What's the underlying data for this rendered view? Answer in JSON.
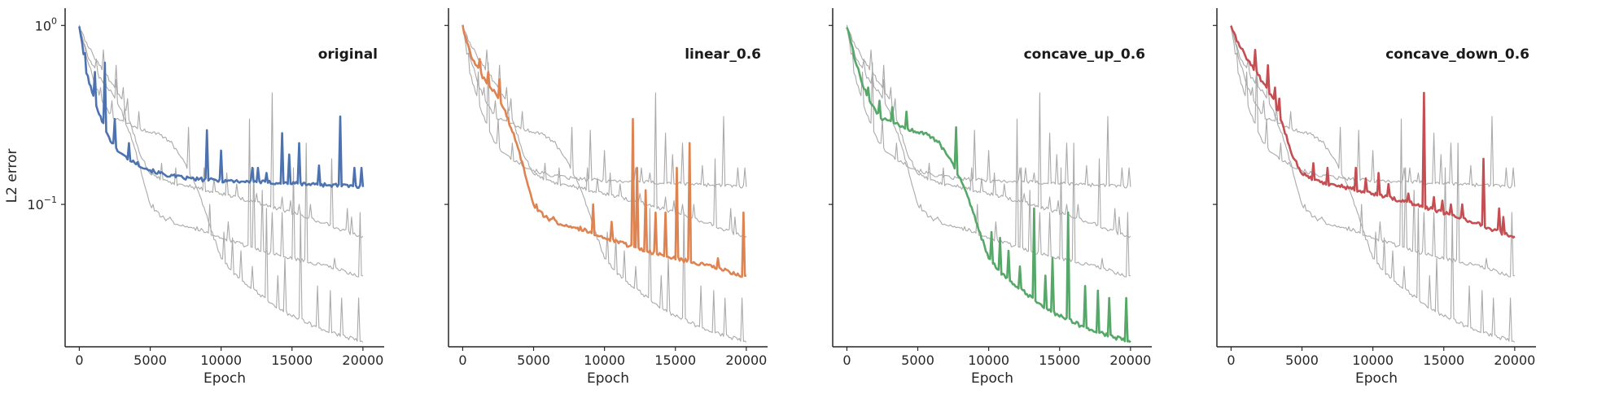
{
  "chart_data": {
    "type": "line",
    "ylabel": "L2 error",
    "yscale": "log",
    "ylim": [
      0.016,
      1.25
    ],
    "y_ticks": [
      1,
      0.1
    ],
    "y_tick_labels": [
      {
        "base": "10",
        "exp": "0"
      },
      {
        "base": "10",
        "exp": "−1"
      }
    ],
    "xlabel": "Epoch",
    "xlim": [
      -1000,
      21500
    ],
    "x_ticks": [
      0,
      5000,
      10000,
      15000,
      20000
    ],
    "x_tick_labels": [
      "0",
      "5000",
      "10000",
      "15000",
      "20000"
    ],
    "sharey": true,
    "grid": false,
    "legend": "none",
    "background_color": "#aaaaaa",
    "panels": [
      {
        "title": "original",
        "color": "#4c72b0",
        "x": [
          0,
          200,
          500,
          800,
          1200,
          1700,
          2300,
          3000,
          4000,
          5000,
          6000,
          7000,
          8000,
          9000,
          10000,
          12000,
          14000,
          16000,
          18000,
          20000
        ],
        "values": [
          1.0,
          0.78,
          0.55,
          0.45,
          0.36,
          0.28,
          0.22,
          0.19,
          0.17,
          0.155,
          0.147,
          0.142,
          0.139,
          0.137,
          0.136,
          0.134,
          0.132,
          0.13,
          0.128,
          0.125
        ],
        "spikes": [
          [
            400,
            0.7
          ],
          [
            1100,
            0.55
          ],
          [
            1800,
            0.62
          ],
          [
            2500,
            0.3
          ],
          [
            3500,
            0.22
          ],
          [
            9000,
            0.26
          ],
          [
            10000,
            0.2
          ],
          [
            12200,
            0.16
          ],
          [
            12600,
            0.16
          ],
          [
            13200,
            0.15
          ],
          [
            14300,
            0.25
          ],
          [
            14800,
            0.19
          ],
          [
            15500,
            0.22
          ],
          [
            16900,
            0.165
          ],
          [
            18400,
            0.31
          ],
          [
            19400,
            0.16
          ],
          [
            19900,
            0.16
          ]
        ]
      },
      {
        "title": "linear_0.6",
        "color": "#dd8452",
        "x": [
          0,
          200,
          500,
          800,
          1200,
          1700,
          2300,
          3000,
          3800,
          4500,
          5000,
          5500,
          6000,
          7000,
          8000,
          9000,
          10000,
          12000,
          14000,
          16000,
          18000,
          20000
        ],
        "values": [
          1.0,
          0.85,
          0.72,
          0.62,
          0.55,
          0.47,
          0.42,
          0.33,
          0.22,
          0.14,
          0.1,
          0.09,
          0.083,
          0.078,
          0.074,
          0.07,
          0.065,
          0.058,
          0.052,
          0.048,
          0.044,
          0.039
        ],
        "spikes": [
          [
            1200,
            0.65
          ],
          [
            1800,
            0.55
          ],
          [
            2600,
            0.5
          ],
          [
            5200,
            0.1
          ],
          [
            6400,
            0.085
          ],
          [
            8300,
            0.075
          ],
          [
            9200,
            0.1
          ],
          [
            10500,
            0.08
          ],
          [
            12000,
            0.3
          ],
          [
            12300,
            0.16
          ],
          [
            12900,
            0.12
          ],
          [
            13600,
            0.09
          ],
          [
            14300,
            0.09
          ],
          [
            15100,
            0.16
          ],
          [
            16000,
            0.22
          ],
          [
            18000,
            0.05
          ],
          [
            19800,
            0.09
          ]
        ]
      },
      {
        "title": "concave_up_0.6",
        "color": "#55a868",
        "x": [
          0,
          200,
          500,
          900,
          1300,
          1800,
          2500,
          3500,
          4500,
          5500,
          6500,
          7500,
          8500,
          9000,
          9500,
          10000,
          11000,
          12000,
          13000,
          14000,
          15000,
          16000,
          17000,
          18000,
          19000,
          20000
        ],
        "values": [
          1.0,
          0.85,
          0.68,
          0.53,
          0.43,
          0.35,
          0.3,
          0.28,
          0.26,
          0.25,
          0.22,
          0.17,
          0.11,
          0.085,
          0.065,
          0.05,
          0.04,
          0.035,
          0.03,
          0.026,
          0.024,
          0.022,
          0.02,
          0.019,
          0.018,
          0.017
        ],
        "spikes": [
          [
            1500,
            0.45
          ],
          [
            2300,
            0.38
          ],
          [
            3200,
            0.35
          ],
          [
            4200,
            0.33
          ],
          [
            7700,
            0.27
          ],
          [
            10200,
            0.07
          ],
          [
            10800,
            0.065
          ],
          [
            11400,
            0.055
          ],
          [
            12200,
            0.045
          ],
          [
            13200,
            0.095
          ],
          [
            14000,
            0.04
          ],
          [
            14500,
            0.05
          ],
          [
            15600,
            0.09
          ],
          [
            16800,
            0.035
          ],
          [
            17700,
            0.033
          ],
          [
            18500,
            0.03
          ],
          [
            19700,
            0.03
          ]
        ]
      },
      {
        "title": "concave_down_0.6",
        "color": "#c44e52",
        "x": [
          0,
          200,
          500,
          900,
          1300,
          1800,
          2300,
          3000,
          3700,
          4300,
          5000,
          6000,
          7000,
          8000,
          9000,
          10000,
          12000,
          14000,
          16000,
          18000,
          20000
        ],
        "values": [
          1.0,
          0.9,
          0.8,
          0.7,
          0.62,
          0.55,
          0.47,
          0.38,
          0.27,
          0.19,
          0.15,
          0.135,
          0.13,
          0.125,
          0.12,
          0.115,
          0.105,
          0.095,
          0.085,
          0.075,
          0.065
        ],
        "spikes": [
          [
            1700,
            0.73
          ],
          [
            2600,
            0.6
          ],
          [
            3100,
            0.45
          ],
          [
            3400,
            0.39
          ],
          [
            5800,
            0.17
          ],
          [
            6800,
            0.16
          ],
          [
            8800,
            0.16
          ],
          [
            9500,
            0.14
          ],
          [
            10400,
            0.15
          ],
          [
            11100,
            0.13
          ],
          [
            12500,
            0.115
          ],
          [
            13600,
            0.42
          ],
          [
            14300,
            0.11
          ],
          [
            14900,
            0.105
          ],
          [
            15500,
            0.1
          ],
          [
            16300,
            0.1
          ],
          [
            17800,
            0.18
          ],
          [
            18900,
            0.095
          ],
          [
            19200,
            0.085
          ]
        ]
      }
    ]
  }
}
